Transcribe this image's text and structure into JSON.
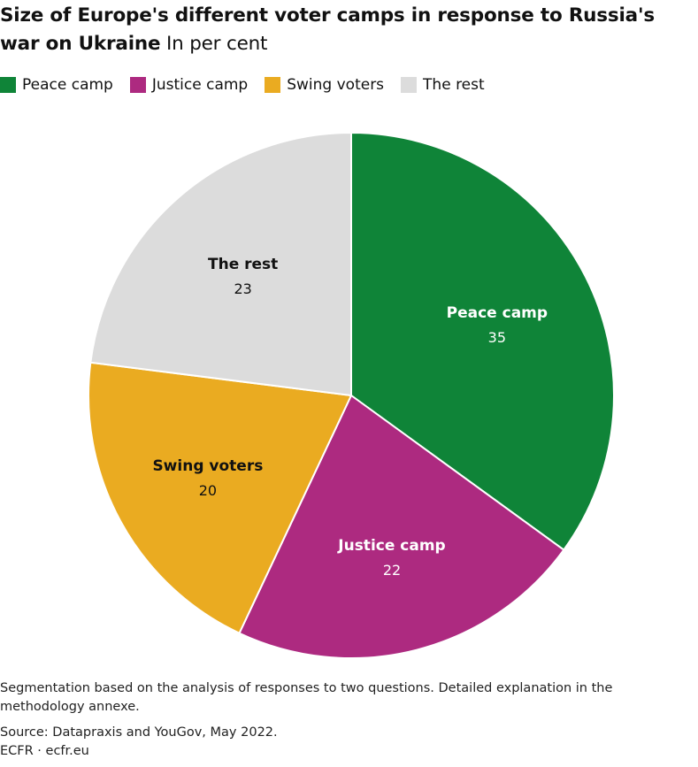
{
  "header": {
    "title": "Size of Europe's different voter camps in response to Russia's war on Ukraine",
    "subtitle": "In per cent"
  },
  "chart_data": {
    "type": "pie",
    "title": "Size of Europe's different voter camps in response to Russia's war on Ukraine",
    "subtitle": "In per cent",
    "legend_position": "top-left",
    "start_angle_deg": 0,
    "direction": "clockwise",
    "slices": [
      {
        "label": "Peace camp",
        "value": 35,
        "color": "#0f8438",
        "label_color": "#ffffff"
      },
      {
        "label": "Justice camp",
        "value": 22,
        "color": "#ad2a80",
        "label_color": "#ffffff"
      },
      {
        "label": "Swing voters",
        "value": 20,
        "color": "#eaab21",
        "label_color": "#111111"
      },
      {
        "label": "The rest",
        "value": 23,
        "color": "#dcdcdc",
        "label_color": "#111111"
      }
    ]
  },
  "footer": {
    "note": "Segmentation based on the analysis of responses to two questions. Detailed explanation in the methodology annexe.",
    "source": "Source: Datapraxis and YouGov, May 2022.",
    "credit": "ECFR · ecfr.eu"
  }
}
